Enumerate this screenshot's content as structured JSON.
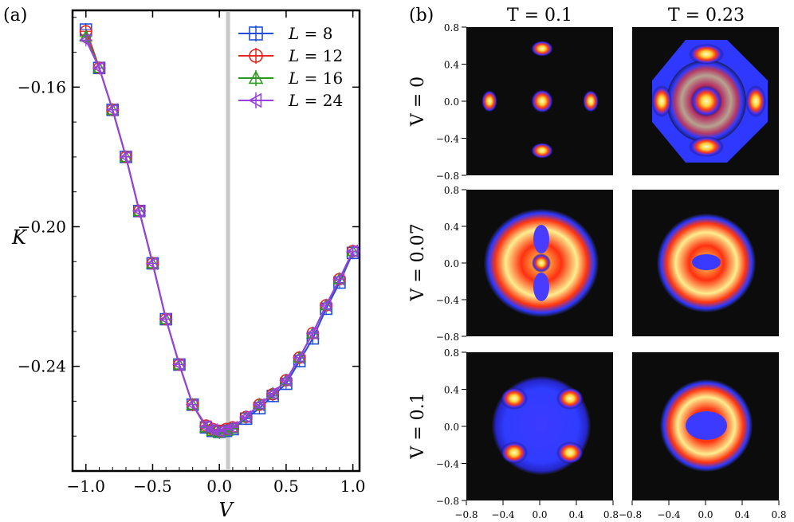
{
  "panel_a": {
    "panel_label": "(a)",
    "xlabel": "V",
    "ylabel": "K",
    "shaded_region": [
      0.05,
      0.08
    ],
    "xlim": [
      -1.1,
      1.05
    ],
    "ylim": [
      -0.27,
      -0.138
    ],
    "xticks": [
      -1.0,
      -0.5,
      0.0,
      0.5,
      1.0
    ],
    "xtick_labels": [
      "−1.0",
      "−0.5",
      "0.0",
      "0.5",
      "1.0"
    ],
    "yticks": [
      -0.16,
      -0.2,
      -0.24
    ],
    "ytick_labels": [
      "−0.16",
      "−0.20",
      "−0.24"
    ],
    "legend_title_sep": "=",
    "legend_var": "L",
    "legend_items": [
      "8",
      "12",
      "16",
      "24"
    ]
  },
  "chart_data": {
    "type": "line",
    "title": "",
    "xlabel": "V",
    "ylabel": "K",
    "x": [
      -1.0,
      -0.9,
      -0.8,
      -0.7,
      -0.6,
      -0.5,
      -0.4,
      -0.3,
      -0.2,
      -0.1,
      -0.05,
      0.0,
      0.05,
      0.1,
      0.2,
      0.3,
      0.4,
      0.5,
      0.6,
      0.7,
      0.8,
      0.9,
      1.0
    ],
    "series": [
      {
        "name": "L = 8",
        "color": "#1f4fd8",
        "marker": "square",
        "values": [
          -0.1435,
          -0.1545,
          -0.1665,
          -0.18,
          -0.1955,
          -0.2105,
          -0.2265,
          -0.2395,
          -0.251,
          -0.2575,
          -0.2585,
          -0.2588,
          -0.2585,
          -0.258,
          -0.255,
          -0.252,
          -0.2485,
          -0.245,
          -0.2385,
          -0.232,
          -0.2235,
          -0.216,
          -0.2075
        ]
      },
      {
        "name": "L = 12",
        "color": "#e8251e",
        "marker": "circle",
        "values": [
          -0.144,
          -0.1545,
          -0.1665,
          -0.18,
          -0.1955,
          -0.2105,
          -0.2265,
          -0.2395,
          -0.251,
          -0.257,
          -0.258,
          -0.2585,
          -0.258,
          -0.2575,
          -0.2545,
          -0.251,
          -0.248,
          -0.244,
          -0.2375,
          -0.2305,
          -0.2225,
          -0.215,
          -0.207
        ]
      },
      {
        "name": "L = 16",
        "color": "#2a9a1e",
        "marker": "triangle",
        "values": [
          -0.1455,
          -0.1545,
          -0.1665,
          -0.18,
          -0.1955,
          -0.2105,
          -0.2265,
          -0.2395,
          -0.251,
          -0.2575,
          -0.2585,
          -0.259,
          -0.2585,
          -0.2578,
          -0.2545,
          -0.251,
          -0.2478,
          -0.244,
          -0.2375,
          -0.2305,
          -0.2225,
          -0.215,
          -0.207
        ]
      },
      {
        "name": "L = 24",
        "color": "#9b3fe0",
        "marker": "triangle-left",
        "values": [
          -0.1465,
          -0.1545,
          -0.1665,
          -0.18,
          -0.1955,
          -0.2105,
          -0.2265,
          -0.2395,
          -0.251,
          -0.2573,
          -0.2582,
          -0.2587,
          -0.2582,
          -0.2575,
          -0.2545,
          -0.251,
          -0.2478,
          -0.244,
          -0.2375,
          -0.2305,
          -0.2225,
          -0.215,
          -0.207
        ]
      }
    ],
    "xlim": [
      -1.1,
      1.05
    ],
    "ylim": [
      -0.27,
      -0.138
    ]
  },
  "panel_b": {
    "panel_label": "(b)",
    "col_titles": [
      "T = 0.1",
      "T = 0.23"
    ],
    "row_titles": [
      "V = 0",
      "V = 0.07",
      "V = 0.1"
    ],
    "tick_labels": [
      "0.8",
      "0.4",
      "0.0",
      "−0.4",
      "−0.8"
    ],
    "x_tick_labels": [
      "−0.8",
      "−0.4",
      "0.0",
      "0.4",
      "0.8"
    ],
    "last_x_tick_label_left": "0.8",
    "last_x_tick_label_joined": "0.8−0.8"
  }
}
